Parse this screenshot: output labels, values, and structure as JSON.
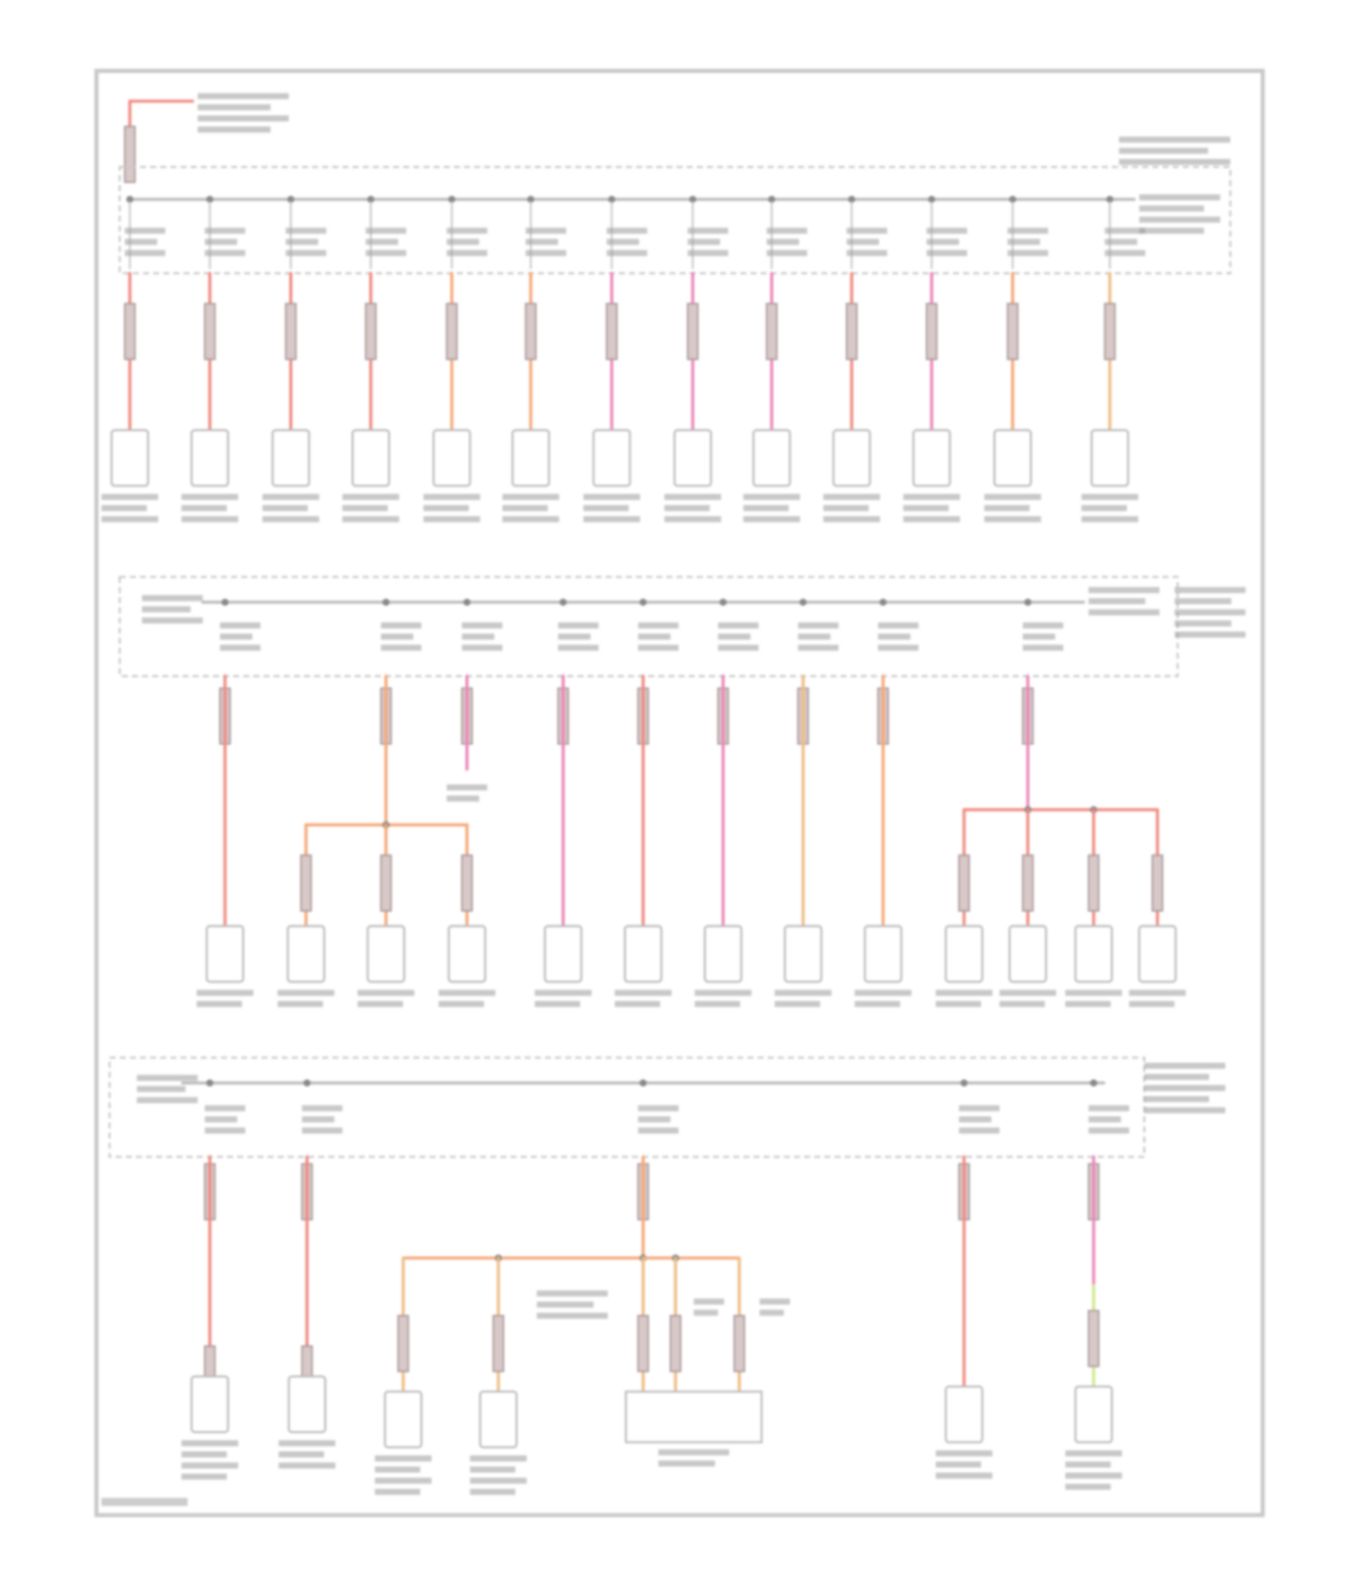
{
  "diagram": {
    "kind": "power distribution wiring diagram",
    "wire_colors": {
      "red": "#f08a80",
      "pink": "#ec86b8",
      "orange": "#f5a878",
      "tan": "#eebd86",
      "yellow_green": "#cfe890",
      "frame": "#c8c8c8",
      "label_gray": "#9a9a9a"
    }
  }
}
